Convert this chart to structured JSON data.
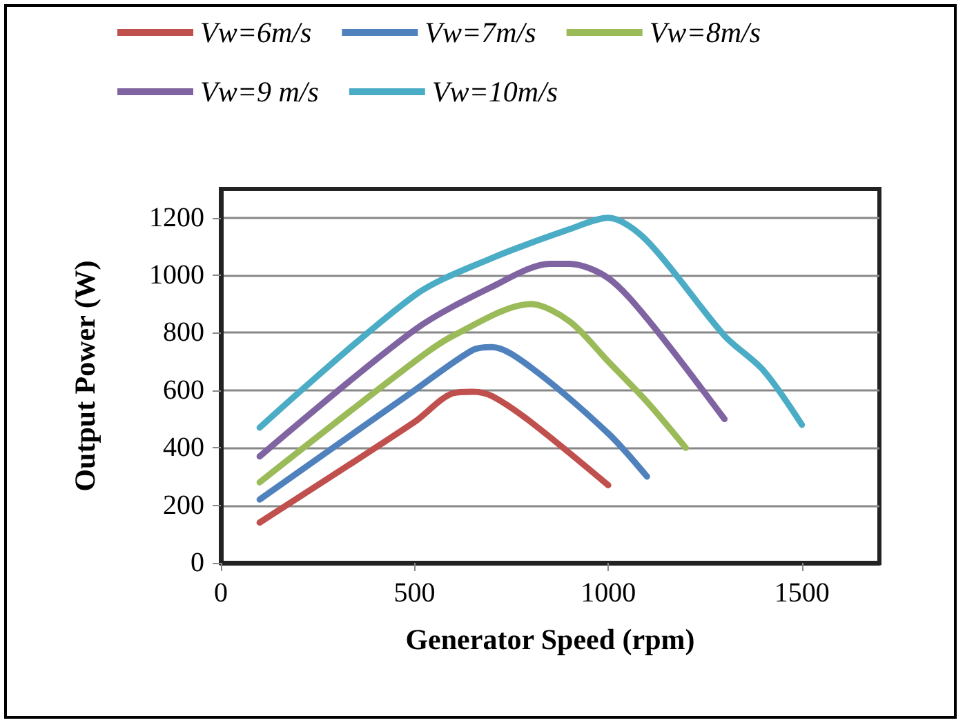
{
  "chart_data": {
    "type": "line",
    "xlabel": "Generator Speed (rpm)",
    "ylabel": "Output Power (W)",
    "xlim": [
      0,
      1700
    ],
    "xticks": [
      0,
      500,
      1000,
      1500
    ],
    "ylim": [
      0,
      1300
    ],
    "yticks": [
      0,
      200,
      400,
      600,
      800,
      1000,
      1200
    ],
    "grid": "y",
    "legend": "top",
    "marker": "none",
    "line_style": "solid",
    "series": [
      {
        "name": "Vw=6m/s",
        "color": "#c0504d",
        "x": [
          100,
          500,
          600,
          650,
          700,
          800,
          1000
        ],
        "values": [
          140,
          490,
          590,
          595,
          580,
          490,
          270
        ]
      },
      {
        "name": "Vw=7m/s",
        "color": "#4f81bd",
        "x": [
          100,
          500,
          650,
          700,
          800,
          1000,
          1100
        ],
        "values": [
          220,
          600,
          740,
          750,
          680,
          450,
          300
        ]
      },
      {
        "name": "Vw=8m/s",
        "color": "#9bbb59",
        "x": [
          100,
          500,
          600,
          800,
          900,
          1000,
          1100,
          1200
        ],
        "values": [
          280,
          700,
          790,
          900,
          840,
          700,
          560,
          400
        ]
      },
      {
        "name": "Vw=9 m/s",
        "color": "#8064a2",
        "x": [
          100,
          500,
          700,
          850,
          900,
          1000,
          1100,
          1300
        ],
        "values": [
          370,
          810,
          960,
          1040,
          1040,
          990,
          850,
          500
        ]
      },
      {
        "name": "Vw=10m/s",
        "color": "#4bacc6",
        "x": [
          100,
          500,
          700,
          900,
          1000,
          1100,
          1300,
          1400,
          1500
        ],
        "values": [
          470,
          930,
          1060,
          1160,
          1200,
          1120,
          790,
          670,
          480
        ]
      }
    ]
  }
}
